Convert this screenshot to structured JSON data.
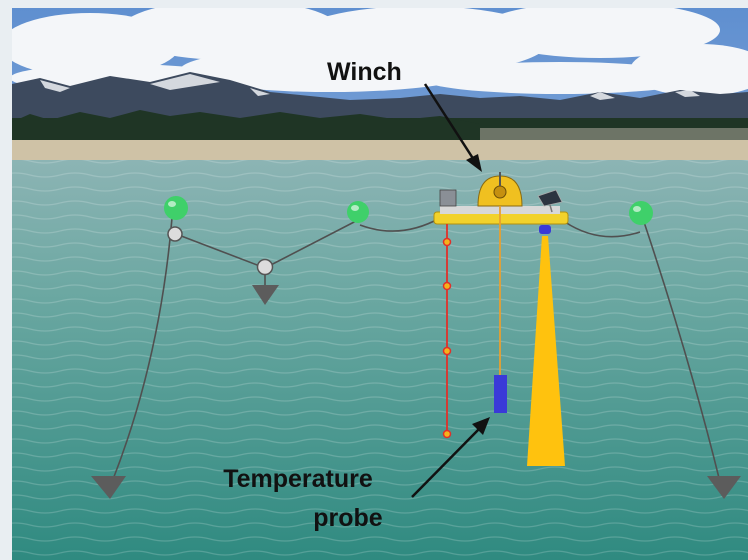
{
  "labels": {
    "winch": "Winch",
    "temperature_probe_line1": "Temperature",
    "temperature_probe_line2": "probe"
  },
  "colors": {
    "buoy": "#3fd06a",
    "mooring_line": "#505050",
    "anchor": "#5c5c5c",
    "sensor_chain": "#e0302a",
    "sensor_node": "#f5b21a",
    "probe_cable": "#e8a030",
    "probe": "#3a3ad8",
    "sonar_beam": "#ffc20e",
    "arrow": "#111111",
    "water": "#5a9c96",
    "sky": "#7fa8d8",
    "mountains": "#3d4a5e",
    "snow": "#f2f4f7",
    "tree_line": "#1f3525",
    "beach": "#cfc2a6",
    "platform": "#f2d22b"
  }
}
